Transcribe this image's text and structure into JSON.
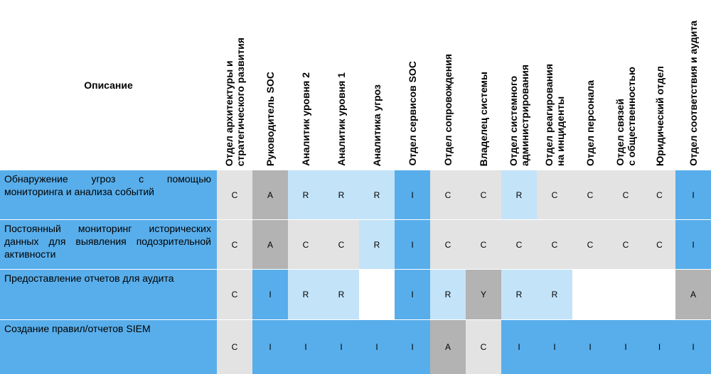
{
  "header": {
    "description": "Описание",
    "columns": [
      "Отдел архитектуры и\nстратегического развития",
      "Руководитель SOC",
      "Аналитик уровня 2",
      "Аналитик уровня 1",
      "Аналитика угроз",
      "Отдел сервисов SOC",
      "Отдел сопровождения",
      "Владелец системы",
      "Отдел системного\nадминистрирования",
      "Отдел реагирования\nна инциденты",
      "Отдел персонала",
      "Отдел связей\nс общественностью",
      "Юридический отдел",
      "Отдел соответствия и аудита"
    ]
  },
  "rows": [
    {
      "description": "Обнаружение угроз с помощью мониторинга и анализа событий",
      "values": [
        "C",
        "A",
        "R",
        "R",
        "R",
        "I",
        "C",
        "C",
        "R",
        "C",
        "C",
        "C",
        "C",
        "I"
      ]
    },
    {
      "description": "Постоянный мониторинг исторических данных для выявления подозрительной активности",
      "values": [
        "C",
        "A",
        "C",
        "C",
        "R",
        "I",
        "C",
        "C",
        "C",
        "C",
        "C",
        "C",
        "C",
        "I"
      ]
    },
    {
      "description": "Предоставление отчетов для аудита",
      "values": [
        "C",
        "I",
        "R",
        "R",
        "",
        "I",
        "R",
        "Y",
        "R",
        "R",
        "",
        "",
        "",
        "A"
      ]
    },
    {
      "description": "Создание правил/отчетов SIEM",
      "values": [
        "C",
        "I",
        "I",
        "I",
        "I",
        "I",
        "A",
        "C",
        "I",
        "I",
        "I",
        "I",
        "I",
        "I"
      ]
    }
  ],
  "colors": {
    "I": "#58aeeb",
    "A": "#b3b3b3",
    "Y": "#b3b3b3",
    "C": "#e3e3e3",
    "R": "#c3e3f8",
    "empty": "#ffffff",
    "description_bg": "#58aeeb"
  }
}
